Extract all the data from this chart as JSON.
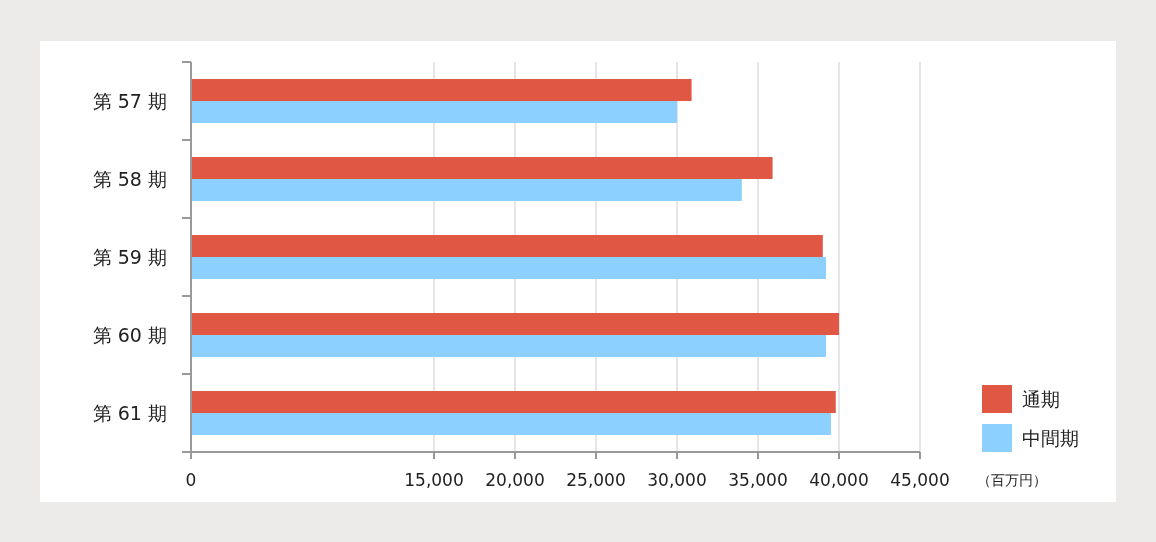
{
  "chart_data": {
    "type": "bar",
    "orientation": "horizontal",
    "categories": [
      "第 57 期",
      "第 58 期",
      "第 59 期",
      "第 60 期",
      "第 61 期"
    ],
    "series": [
      {
        "name": "通期",
        "color": "#e05744",
        "values": [
          30900,
          35900,
          39000,
          40000,
          39800
        ]
      },
      {
        "name": "中間期",
        "color": "#8bd0ff",
        "values": [
          30000,
          34000,
          39200,
          39200,
          39500
        ]
      }
    ],
    "xlim": [
      0,
      45000
    ],
    "xticks": [
      0,
      {
        "value": 15000,
        "label": "15,000"
      },
      {
        "value": 20000,
        "label": "20,000"
      },
      {
        "value": 25000,
        "label": "25,000"
      },
      {
        "value": 30000,
        "label": "30,000"
      },
      {
        "value": 35000,
        "label": "35,000"
      },
      {
        "value": 40000,
        "label": "40,000"
      },
      {
        "value": 45000,
        "label": "45,000"
      }
    ],
    "grid": "x",
    "legend": "bottom right",
    "annotations": [
      "（百万円）"
    ]
  }
}
